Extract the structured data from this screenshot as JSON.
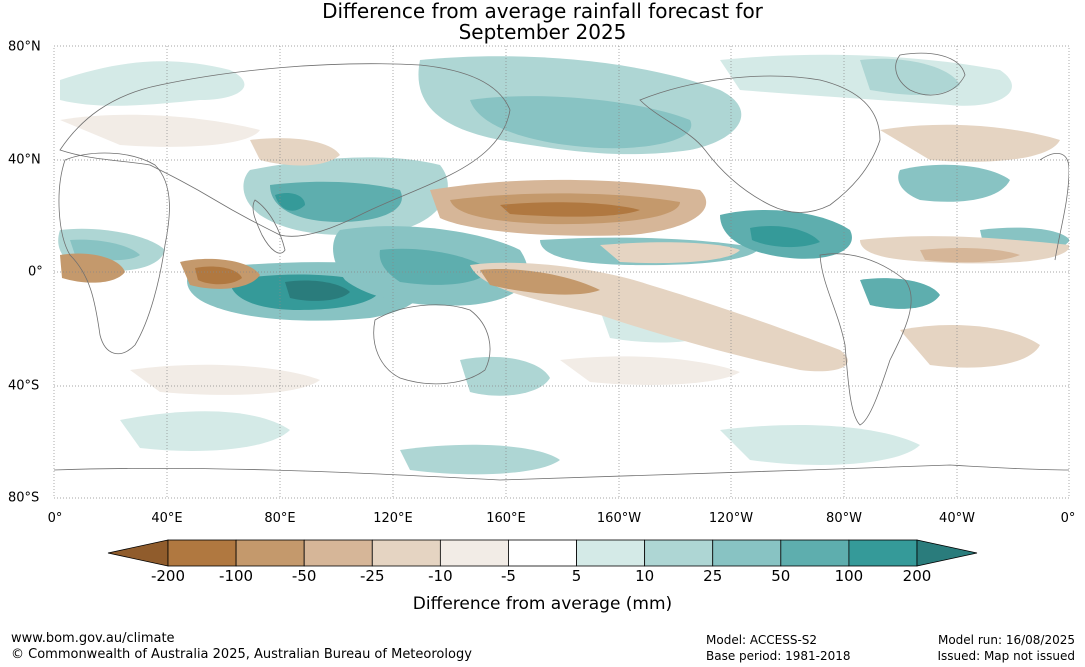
{
  "title_line1": "Difference from average rainfall forecast for",
  "title_line2": "September 2025",
  "lat_labels": [
    "80°N",
    "40°N",
    "0°",
    "40°S",
    "80°S"
  ],
  "lon_labels": [
    "0°",
    "40°E",
    "80°E",
    "120°E",
    "160°E",
    "160°W",
    "120°W",
    "80°W",
    "40°W",
    "0°"
  ],
  "colorbar": {
    "ticks": [
      "-200",
      "-100",
      "-50",
      "-25",
      "-10",
      "-5",
      "5",
      "10",
      "25",
      "50",
      "100",
      "200"
    ],
    "colors": [
      "#905c2c",
      "#b07840",
      "#c4996c",
      "#d6b698",
      "#e5d4c2",
      "#f2ece6",
      "#ffffff",
      "#d4eae7",
      "#aed6d4",
      "#88c3c3",
      "#5eaeae",
      "#359a99",
      "#2a7c7c"
    ],
    "label": "Difference from average (mm)"
  },
  "footer": {
    "url": "www.bom.gov.au/climate",
    "copyright": "© Commonwealth of Australia 2025, Australian Bureau of Meteorology",
    "model": "Model: ACCESS-S2",
    "base_period": "Base period: 1981-2018",
    "model_run": "Model run: 16/08/2025",
    "issued": "Issued: Map not issued"
  }
}
